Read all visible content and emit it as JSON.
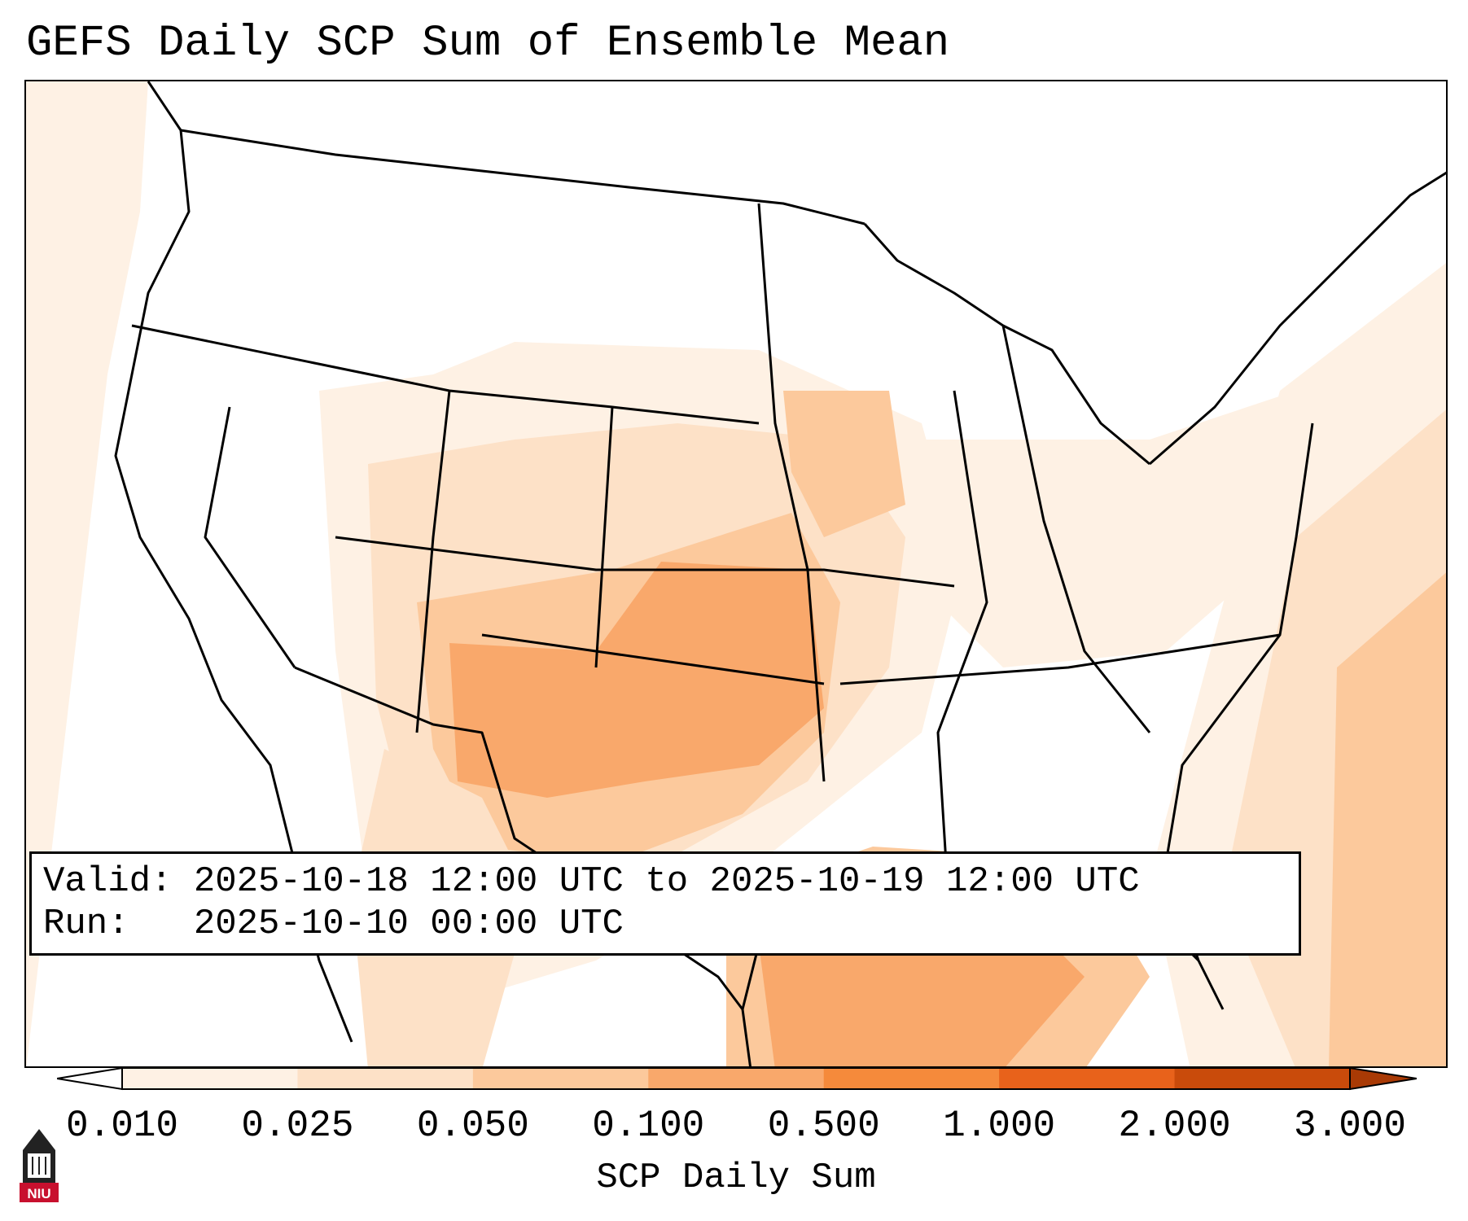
{
  "title": "GEFS Daily SCP Sum of Ensemble Mean",
  "info": {
    "valid_label": "Valid:",
    "valid_value": "2025-10-18 12:00 UTC to 2025-10-19 12:00 UTC",
    "run_label": "Run:",
    "run_value": "2025-10-10 00:00 UTC"
  },
  "colorbar": {
    "label": "SCP Daily Sum",
    "ticks": [
      "0.010",
      "0.025",
      "0.050",
      "0.100",
      "0.500",
      "1.000",
      "2.000",
      "3.000"
    ],
    "colors": [
      "#fef1e4",
      "#fde1c7",
      "#fcc99c",
      "#f9a86b",
      "#f58a3b",
      "#e8621b",
      "#c94b0b"
    ],
    "under_color": "#ffffff",
    "over_color": "#a93a05"
  },
  "logo": {
    "text": "NIU",
    "color": "#c8102e"
  },
  "map": {
    "region": "Contiguous United States",
    "field": "SCP Daily Sum",
    "boundary_color": "#000000"
  }
}
